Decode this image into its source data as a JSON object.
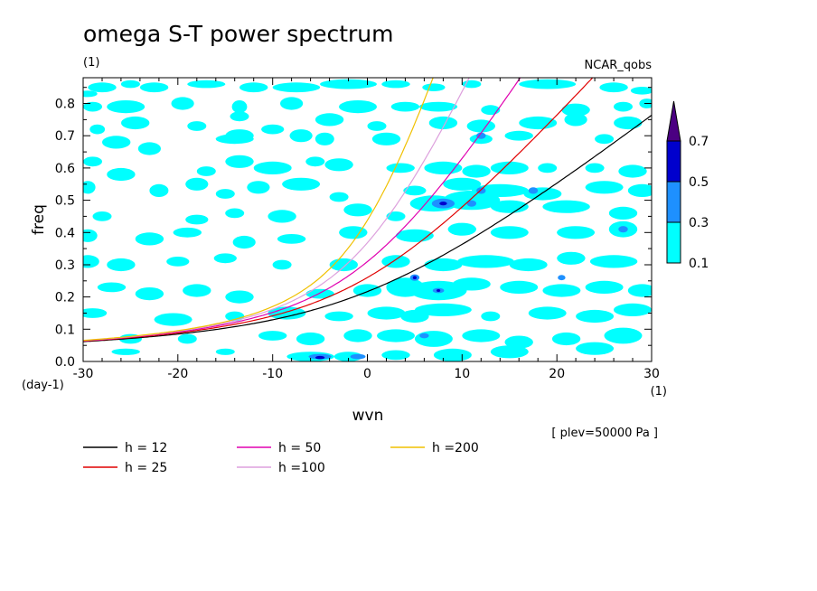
{
  "chart_data": {
    "type": "heatmap",
    "title": "omega S-T power spectrum",
    "subtitle_left": "(1)",
    "subtitle_right": "NCAR_qobs",
    "xlabel": "wvn",
    "ylabel": "freq",
    "x_unit": "(1)",
    "y_unit": "(day-1)",
    "xlim": [
      -30,
      30
    ],
    "ylim": [
      0.0,
      0.88
    ],
    "xticks": [
      -30,
      -20,
      -10,
      0,
      10,
      20,
      30
    ],
    "xtick_labels": [
      "-30",
      "-20",
      "-10",
      "0",
      "10",
      "20",
      "30"
    ],
    "yticks": [
      0.0,
      0.1,
      0.2,
      0.3,
      0.4,
      0.5,
      0.6,
      0.7,
      0.8
    ],
    "ytick_labels": [
      "0.0",
      "0.1",
      "0.2",
      "0.3",
      "0.4",
      "0.5",
      "0.6",
      "0.7",
      "0.8"
    ],
    "annotation": "[ plev=50000 Pa ]",
    "colorbar": {
      "levels": [
        0.1,
        0.3,
        0.5,
        0.7
      ],
      "level_labels": [
        "0.1",
        "0.3",
        "0.5",
        "0.7"
      ],
      "colors": [
        "#00ffff",
        "#1e90ff",
        "#0000cd",
        "#4b0082"
      ]
    },
    "dispersion_curves": [
      {
        "name": "h = 12",
        "equivalent_depth": 12,
        "color": "#000000"
      },
      {
        "name": "h = 25",
        "equivalent_depth": 25,
        "color": "#e00000"
      },
      {
        "name": "h = 50",
        "equivalent_depth": 50,
        "color": "#e000b0"
      },
      {
        "name": "h =100",
        "equivalent_depth": 100,
        "color": "#dda0dd"
      },
      {
        "name": "h =200",
        "equivalent_depth": 200,
        "color": "#f0c000"
      }
    ],
    "blobs_01": [
      [
        -29.5,
        0.83,
        1.0,
        0.01
      ],
      [
        -28,
        0.85,
        1.5,
        0.015
      ],
      [
        -25,
        0.86,
        1.0,
        0.012
      ],
      [
        -22.5,
        0.85,
        1.5,
        0.015
      ],
      [
        -17,
        0.86,
        2.0,
        0.012
      ],
      [
        -12,
        0.85,
        1.5,
        0.015
      ],
      [
        -7.5,
        0.85,
        2.5,
        0.015
      ],
      [
        -2,
        0.86,
        3.0,
        0.015
      ],
      [
        3,
        0.86,
        1.5,
        0.012
      ],
      [
        7,
        0.85,
        1.2,
        0.012
      ],
      [
        11,
        0.86,
        1.0,
        0.012
      ],
      [
        19,
        0.86,
        3.0,
        0.015
      ],
      [
        26,
        0.85,
        1.5,
        0.015
      ],
      [
        29,
        0.84,
        1.2,
        0.012
      ],
      [
        -29,
        0.79,
        1.0,
        0.015
      ],
      [
        -25.5,
        0.79,
        2.0,
        0.02
      ],
      [
        -19.5,
        0.8,
        1.2,
        0.02
      ],
      [
        -13.5,
        0.79,
        0.8,
        0.02
      ],
      [
        -8,
        0.8,
        1.2,
        0.02
      ],
      [
        -1,
        0.79,
        2.0,
        0.02
      ],
      [
        4,
        0.79,
        1.5,
        0.015
      ],
      [
        7.5,
        0.79,
        2.0,
        0.015
      ],
      [
        13,
        0.78,
        1.0,
        0.015
      ],
      [
        22,
        0.78,
        1.5,
        0.02
      ],
      [
        27,
        0.79,
        1.0,
        0.015
      ],
      [
        29.5,
        0.8,
        0.8,
        0.015
      ],
      [
        -28.5,
        0.72,
        0.8,
        0.015
      ],
      [
        -24.5,
        0.74,
        1.5,
        0.02
      ],
      [
        -18,
        0.73,
        1.0,
        0.015
      ],
      [
        -13.5,
        0.76,
        1.0,
        0.015
      ],
      [
        -10,
        0.72,
        1.2,
        0.015
      ],
      [
        -4,
        0.75,
        1.5,
        0.02
      ],
      [
        1,
        0.73,
        1.0,
        0.015
      ],
      [
        8,
        0.74,
        1.5,
        0.02
      ],
      [
        12,
        0.73,
        1.5,
        0.02
      ],
      [
        18,
        0.74,
        2.0,
        0.02
      ],
      [
        22,
        0.75,
        1.2,
        0.02
      ],
      [
        27.5,
        0.74,
        1.5,
        0.02
      ],
      [
        -26.5,
        0.68,
        1.5,
        0.02
      ],
      [
        -23,
        0.66,
        1.2,
        0.02
      ],
      [
        -14,
        0.69,
        2.0,
        0.015
      ],
      [
        -13.5,
        0.7,
        1.5,
        0.02
      ],
      [
        -7,
        0.7,
        1.2,
        0.02
      ],
      [
        -4.5,
        0.69,
        1.0,
        0.02
      ],
      [
        2,
        0.69,
        1.5,
        0.02
      ],
      [
        12,
        0.69,
        1.2,
        0.015
      ],
      [
        16,
        0.7,
        1.5,
        0.015
      ],
      [
        25,
        0.69,
        1.0,
        0.015
      ],
      [
        -29,
        0.62,
        1.0,
        0.015
      ],
      [
        -26,
        0.58,
        1.5,
        0.02
      ],
      [
        -17,
        0.59,
        1.0,
        0.015
      ],
      [
        -13.5,
        0.62,
        1.5,
        0.02
      ],
      [
        -10,
        0.6,
        2.0,
        0.02
      ],
      [
        -5.5,
        0.62,
        1.0,
        0.015
      ],
      [
        -3,
        0.61,
        1.5,
        0.02
      ],
      [
        3.5,
        0.6,
        1.5,
        0.015
      ],
      [
        8,
        0.6,
        2.0,
        0.02
      ],
      [
        11.5,
        0.59,
        1.5,
        0.02
      ],
      [
        15,
        0.6,
        2.0,
        0.02
      ],
      [
        19,
        0.6,
        1.0,
        0.015
      ],
      [
        24,
        0.6,
        1.0,
        0.015
      ],
      [
        28,
        0.59,
        1.5,
        0.02
      ],
      [
        -29.5,
        0.54,
        0.8,
        0.02
      ],
      [
        -22,
        0.53,
        1.0,
        0.02
      ],
      [
        -18,
        0.55,
        1.2,
        0.02
      ],
      [
        -15,
        0.52,
        1.0,
        0.015
      ],
      [
        -11.5,
        0.54,
        1.2,
        0.02
      ],
      [
        -7,
        0.55,
        2.0,
        0.02
      ],
      [
        -3,
        0.51,
        1.0,
        0.015
      ],
      [
        5,
        0.53,
        1.2,
        0.015
      ],
      [
        10,
        0.55,
        2.0,
        0.02
      ],
      [
        14,
        0.53,
        3.0,
        0.02
      ],
      [
        18.5,
        0.52,
        2.0,
        0.02
      ],
      [
        25,
        0.54,
        2.0,
        0.02
      ],
      [
        29,
        0.53,
        1.5,
        0.02
      ],
      [
        -28,
        0.45,
        1.0,
        0.015
      ],
      [
        -18,
        0.44,
        1.2,
        0.015
      ],
      [
        -14,
        0.46,
        1.0,
        0.015
      ],
      [
        -9,
        0.45,
        1.5,
        0.02
      ],
      [
        -1,
        0.47,
        1.5,
        0.02
      ],
      [
        3,
        0.45,
        1.0,
        0.015
      ],
      [
        7,
        0.49,
        2.5,
        0.025
      ],
      [
        11,
        0.5,
        3.0,
        0.03
      ],
      [
        15,
        0.48,
        2.0,
        0.02
      ],
      [
        21,
        0.48,
        2.5,
        0.02
      ],
      [
        27,
        0.46,
        1.5,
        0.02
      ],
      [
        -29.5,
        0.39,
        1.0,
        0.02
      ],
      [
        -23,
        0.38,
        1.5,
        0.02
      ],
      [
        -19,
        0.4,
        1.5,
        0.015
      ],
      [
        -13,
        0.37,
        1.2,
        0.02
      ],
      [
        -8,
        0.38,
        1.5,
        0.015
      ],
      [
        -1.5,
        0.4,
        1.5,
        0.02
      ],
      [
        5,
        0.39,
        2.0,
        0.02
      ],
      [
        10,
        0.41,
        1.5,
        0.02
      ],
      [
        15,
        0.4,
        2.0,
        0.02
      ],
      [
        22,
        0.4,
        2.0,
        0.02
      ],
      [
        27,
        0.41,
        1.5,
        0.025
      ],
      [
        -29.5,
        0.31,
        1.2,
        0.02
      ],
      [
        -26,
        0.3,
        1.5,
        0.02
      ],
      [
        -20,
        0.31,
        1.2,
        0.015
      ],
      [
        -15,
        0.32,
        1.2,
        0.015
      ],
      [
        -9,
        0.3,
        1.0,
        0.015
      ],
      [
        -2.5,
        0.3,
        1.5,
        0.02
      ],
      [
        3,
        0.31,
        1.5,
        0.02
      ],
      [
        8,
        0.3,
        2.0,
        0.02
      ],
      [
        12.5,
        0.31,
        3.0,
        0.02
      ],
      [
        17,
        0.3,
        2.0,
        0.02
      ],
      [
        21.5,
        0.32,
        1.5,
        0.02
      ],
      [
        26,
        0.31,
        2.5,
        0.02
      ],
      [
        -27,
        0.23,
        1.5,
        0.015
      ],
      [
        -23,
        0.21,
        1.5,
        0.02
      ],
      [
        -18,
        0.22,
        1.5,
        0.02
      ],
      [
        -13.5,
        0.2,
        1.5,
        0.02
      ],
      [
        -5,
        0.21,
        1.5,
        0.015
      ],
      [
        0,
        0.22,
        1.5,
        0.02
      ],
      [
        4,
        0.23,
        2.0,
        0.03
      ],
      [
        7.5,
        0.22,
        3.0,
        0.03
      ],
      [
        11,
        0.24,
        2.0,
        0.02
      ],
      [
        16,
        0.23,
        2.0,
        0.02
      ],
      [
        20.5,
        0.22,
        2.0,
        0.02
      ],
      [
        25,
        0.23,
        2.0,
        0.02
      ],
      [
        29,
        0.22,
        1.5,
        0.02
      ],
      [
        -29,
        0.15,
        1.5,
        0.015
      ],
      [
        -20.5,
        0.13,
        2.0,
        0.02
      ],
      [
        -14,
        0.14,
        1.0,
        0.015
      ],
      [
        -8.5,
        0.15,
        2.0,
        0.02
      ],
      [
        -3,
        0.14,
        1.5,
        0.015
      ],
      [
        2,
        0.15,
        2.0,
        0.02
      ],
      [
        5,
        0.14,
        1.5,
        0.02
      ],
      [
        8,
        0.16,
        3.0,
        0.02
      ],
      [
        13,
        0.14,
        1.0,
        0.015
      ],
      [
        19,
        0.15,
        2.0,
        0.02
      ],
      [
        24,
        0.14,
        2.0,
        0.02
      ],
      [
        28,
        0.16,
        2.0,
        0.02
      ],
      [
        -25,
        0.07,
        1.2,
        0.015
      ],
      [
        -19,
        0.07,
        1.0,
        0.015
      ],
      [
        -10,
        0.08,
        1.5,
        0.015
      ],
      [
        -6,
        0.07,
        1.5,
        0.02
      ],
      [
        -1,
        0.08,
        1.5,
        0.02
      ],
      [
        3,
        0.08,
        2.0,
        0.02
      ],
      [
        7,
        0.07,
        2.0,
        0.025
      ],
      [
        12,
        0.08,
        2.0,
        0.02
      ],
      [
        16,
        0.06,
        1.5,
        0.02
      ],
      [
        21,
        0.07,
        1.5,
        0.02
      ],
      [
        27,
        0.08,
        2.0,
        0.025
      ],
      [
        -25.5,
        0.03,
        1.5,
        0.01
      ],
      [
        -15,
        0.03,
        1.0,
        0.01
      ],
      [
        -6,
        0.015,
        2.5,
        0.015
      ],
      [
        -2,
        0.015,
        1.5,
        0.015
      ],
      [
        3,
        0.02,
        1.5,
        0.015
      ],
      [
        9,
        0.02,
        2.0,
        0.02
      ],
      [
        15,
        0.03,
        2.0,
        0.02
      ],
      [
        24,
        0.04,
        2.0,
        0.02
      ]
    ],
    "blobs_03": [
      [
        8,
        0.49,
        1.2,
        0.015
      ],
      [
        5,
        0.26,
        0.5,
        0.01
      ],
      [
        7.5,
        0.22,
        0.6,
        0.008
      ],
      [
        -5,
        0.015,
        1.2,
        0.008
      ],
      [
        -1,
        0.015,
        0.8,
        0.008
      ],
      [
        6,
        0.08,
        0.5,
        0.008
      ],
      [
        12,
        0.53,
        0.5,
        0.01
      ],
      [
        11,
        0.49,
        0.5,
        0.01
      ],
      [
        12,
        0.7,
        0.5,
        0.01
      ],
      [
        20.5,
        0.26,
        0.4,
        0.008
      ],
      [
        27,
        0.41,
        0.5,
        0.01
      ],
      [
        17.5,
        0.53,
        0.5,
        0.01
      ]
    ],
    "blobs_05": [
      [
        8,
        0.49,
        0.4,
        0.006
      ],
      [
        5,
        0.26,
        0.2,
        0.005
      ],
      [
        -5,
        0.012,
        0.5,
        0.005
      ],
      [
        7.5,
        0.22,
        0.2,
        0.004
      ]
    ]
  }
}
